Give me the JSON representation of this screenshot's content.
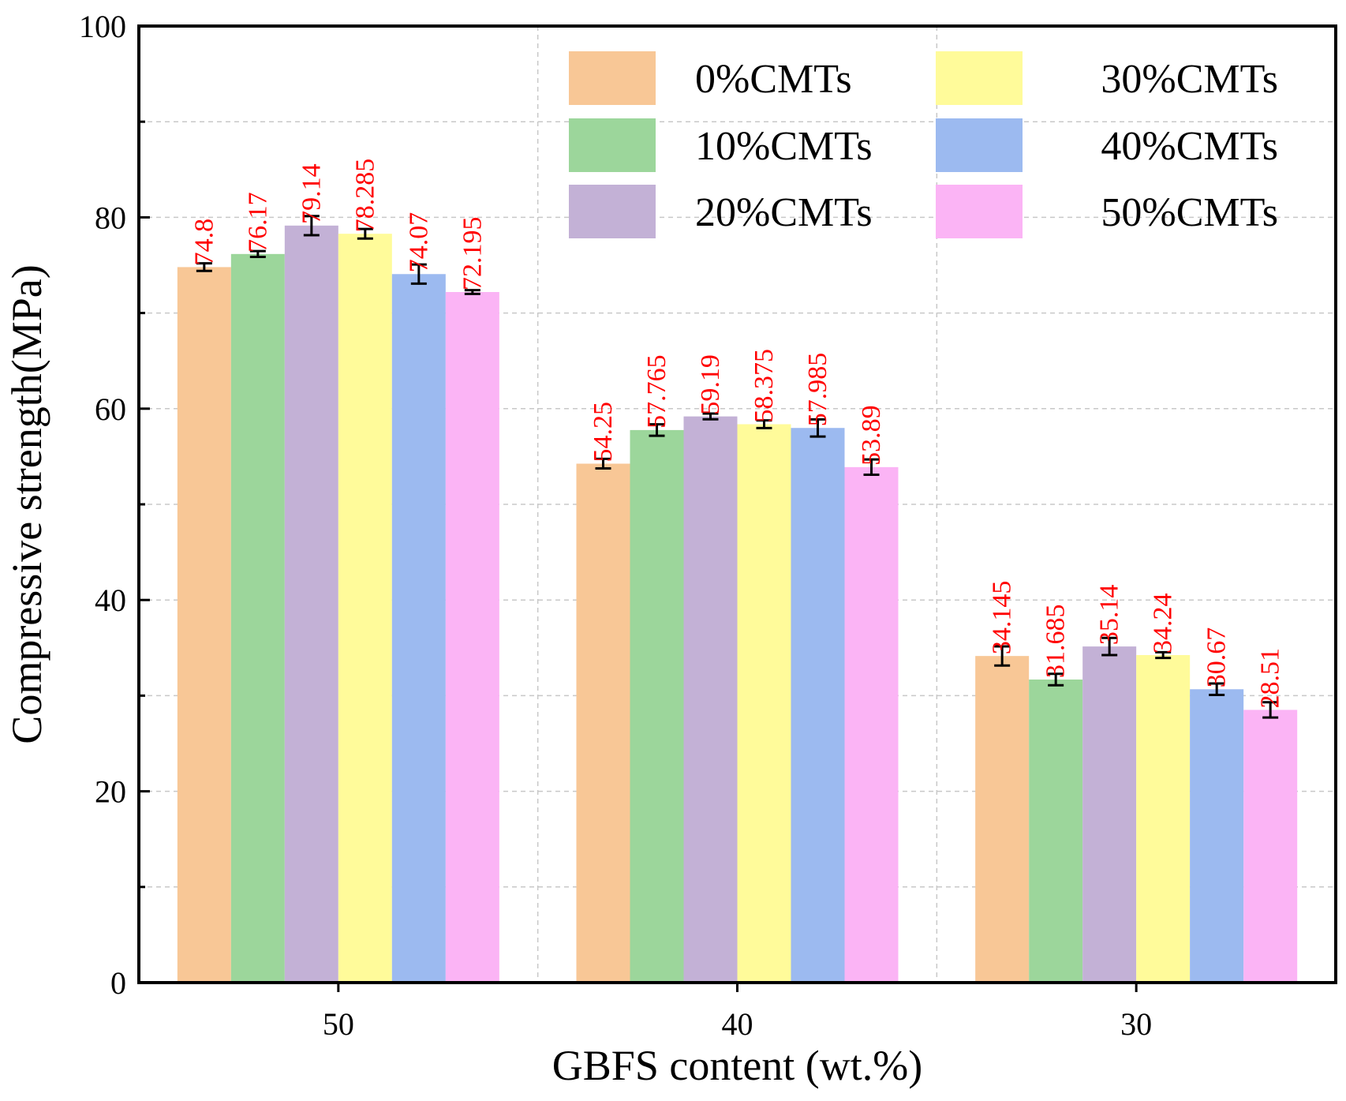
{
  "chart_data": {
    "type": "bar",
    "title": "",
    "xlabel": "GBFS content (wt.%)",
    "ylabel": "Compressive strength(MPa)",
    "ylim": [
      0,
      100
    ],
    "yticks": [
      "0",
      "20",
      "40",
      "60",
      "80",
      "100"
    ],
    "categories": [
      "50",
      "40",
      "30"
    ],
    "grid": true,
    "legend_position": "top-right",
    "series": [
      {
        "name": "0%CMTs",
        "color": "#f8c796",
        "values": [
          74.8,
          54.25,
          34.145
        ],
        "errors": [
          0.4,
          0.5,
          1.0
        ],
        "labels": [
          "74.8",
          "54.25",
          "34.145"
        ]
      },
      {
        "name": "10%CMTs",
        "color": "#9cd69b",
        "values": [
          76.17,
          57.765,
          31.685
        ],
        "errors": [
          0.3,
          0.6,
          0.6
        ],
        "labels": [
          "76.17",
          "57.765",
          "31.685"
        ]
      },
      {
        "name": "20%CMTs",
        "color": "#c3b1d6",
        "values": [
          79.14,
          59.19,
          35.14
        ],
        "errors": [
          1.0,
          0.3,
          0.9
        ],
        "labels": [
          "79.14",
          "59.19",
          "35.14"
        ]
      },
      {
        "name": "30%CMTs",
        "color": "#fffb9a",
        "values": [
          78.285,
          58.375,
          34.24
        ],
        "errors": [
          0.5,
          0.4,
          0.3
        ],
        "labels": [
          "78.285",
          "58.375",
          "34.24"
        ]
      },
      {
        "name": "40%CMTs",
        "color": "#9cbaf0",
        "values": [
          74.07,
          57.985,
          30.67
        ],
        "errors": [
          1.0,
          0.9,
          0.6
        ],
        "labels": [
          "74.07",
          "57.985",
          "30.67"
        ]
      },
      {
        "name": "50%CMTs",
        "color": "#fbb4f5",
        "values": [
          72.195,
          53.89,
          28.51
        ],
        "errors": [
          0.2,
          0.8,
          0.8
        ],
        "labels": [
          "72.195",
          "53.89",
          "28.51"
        ]
      }
    ]
  }
}
